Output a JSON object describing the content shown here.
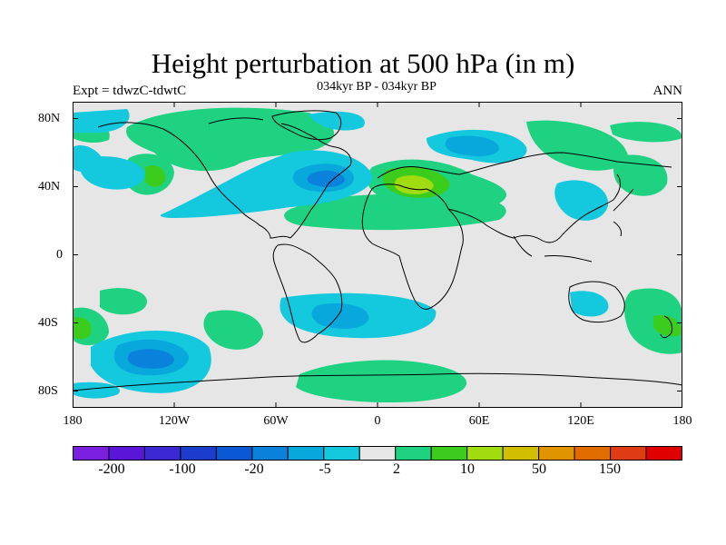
{
  "title": "Height perturbation at 500 hPa (in m)",
  "experiment": "Expt = tdwzC-tdwtC",
  "period": "034kyr BP - 034kyr BP",
  "season": "ANN",
  "map": {
    "projection": "cylindrical equidistant",
    "lon_range": [
      -180,
      180
    ],
    "lat_range": [
      -90,
      90
    ],
    "x_tick_labels": [
      "180",
      "120W",
      "60W",
      "0",
      "60E",
      "120E",
      "180"
    ],
    "y_tick_labels": [
      "80N",
      "40N",
      "0",
      "40S",
      "80S"
    ],
    "background_color": "#e6e6e6",
    "coastline_color": "#000000"
  },
  "colorbar": {
    "colors": [
      "#7a1ee0",
      "#5a16d8",
      "#3c28d2",
      "#1c3ccc",
      "#0a58d6",
      "#0a82dc",
      "#08a8dc",
      "#14c8de",
      "#e6e6e6",
      "#1ed282",
      "#3ccc1e",
      "#a0dc10",
      "#d2be00",
      "#e09400",
      "#e06c00",
      "#e03c14",
      "#e00000"
    ],
    "tick_labels": [
      "-200",
      "-100",
      "-20",
      "-5",
      "2",
      "10",
      "50",
      "150"
    ]
  }
}
